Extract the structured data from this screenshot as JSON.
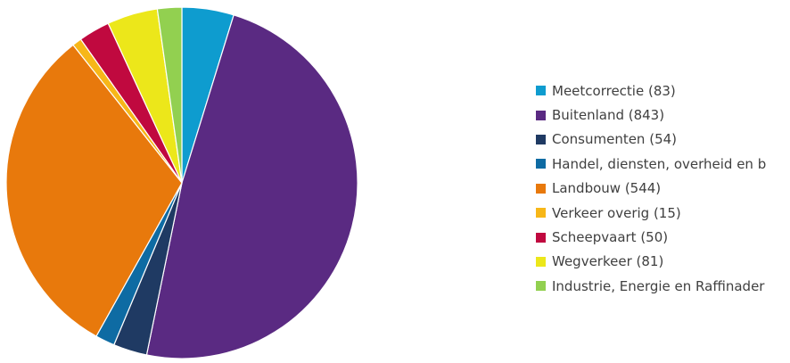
{
  "chart_data": {
    "type": "pie",
    "title": "",
    "start_angle_deg": 0,
    "direction": "clockwise",
    "slices": [
      {
        "label": "Meetcorrectie (83)",
        "value": 83,
        "color": "#0e9ccf"
      },
      {
        "label": "Buitenland (843)",
        "value": 843,
        "color": "#5a2a82"
      },
      {
        "label": "Consumenten (54)",
        "value": 54,
        "color": "#1f3a63"
      },
      {
        "label": "Handel, diensten, overheid en b",
        "value": 31,
        "color": "#0e6ba3"
      },
      {
        "label": "Landbouw  (544)",
        "value": 544,
        "color": "#e8790c"
      },
      {
        "label": "Verkeer overig (15)",
        "value": 15,
        "color": "#f7b718"
      },
      {
        "label": "Scheepvaart (50)",
        "value": 50,
        "color": "#c0093f"
      },
      {
        "label": "Wegverkeer (81)",
        "value": 81,
        "color": "#ece71a"
      },
      {
        "label": "Industrie, Energie en Raffinader",
        "value": 39,
        "color": "#92d050"
      }
    ],
    "legend_position": "right"
  }
}
